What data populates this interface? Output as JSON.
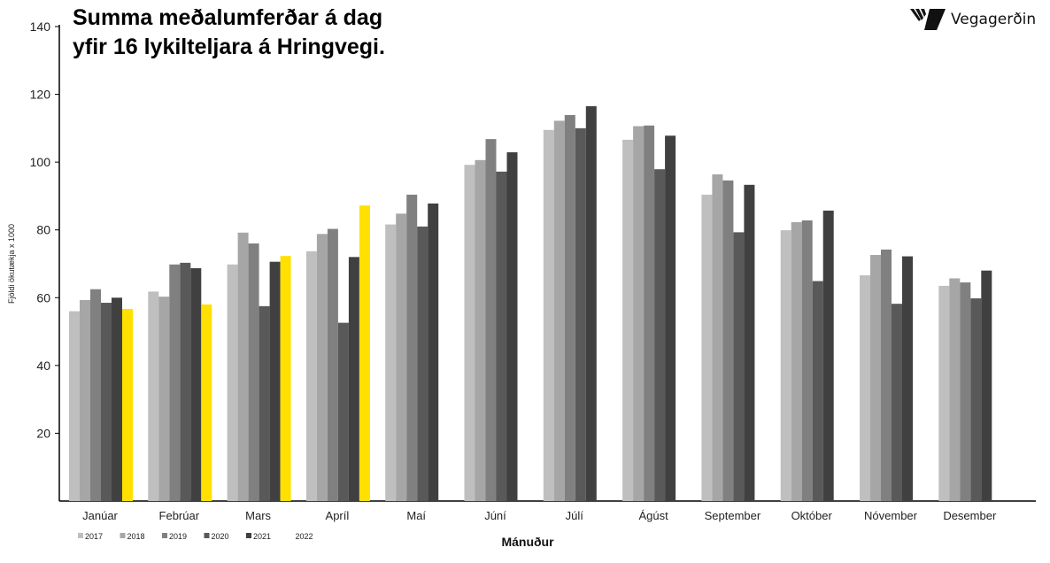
{
  "logo": {
    "text": "Vegagerðin"
  },
  "chart_data": {
    "type": "bar",
    "title": "Summa meðalumferðar á dag\nyfir 16 lykilteljara á Hringvegi.",
    "xlabel": "Mánuður",
    "ylabel": "Fjöldi ökutækja x 1000",
    "ylim": [
      0,
      140
    ],
    "yticks": [
      20,
      40,
      60,
      80,
      100,
      120,
      140
    ],
    "grid": false,
    "legend_placement": "bottom-left",
    "categories": [
      "Janúar",
      "Febrúar",
      "Mars",
      "Apríl",
      "Maí",
      "Júní",
      "Júlí",
      "Ágúst",
      "September",
      "Október",
      "Nóvember",
      "Desember"
    ],
    "series": [
      {
        "name": "2017",
        "color": "#bfbfbf",
        "values": [
          56.0,
          61.8,
          69.8,
          73.7,
          81.6,
          99.2,
          109.5,
          106.6,
          90.4,
          79.9,
          66.6,
          63.5
        ]
      },
      {
        "name": "2018",
        "color": "#a6a6a6",
        "values": [
          59.3,
          60.3,
          79.2,
          78.8,
          84.8,
          100.6,
          112.2,
          110.6,
          96.4,
          82.3,
          72.6,
          65.7
        ]
      },
      {
        "name": "2019",
        "color": "#808080",
        "values": [
          62.5,
          69.8,
          76.0,
          80.3,
          90.4,
          106.8,
          113.9,
          110.8,
          94.6,
          82.8,
          74.2,
          64.5
        ]
      },
      {
        "name": "2020",
        "color": "#595959",
        "values": [
          58.5,
          70.3,
          57.5,
          52.6,
          81.0,
          97.2,
          110.0,
          97.9,
          79.3,
          64.9,
          58.2,
          59.8
        ]
      },
      {
        "name": "2021",
        "color": "#404040",
        "values": [
          60.0,
          68.7,
          70.6,
          72.0,
          87.8,
          102.9,
          116.5,
          107.8,
          93.3,
          85.7,
          72.2,
          68.0
        ]
      },
      {
        "name": "2022",
        "color": "#ffe000",
        "legend_swatch_visible": false,
        "values": [
          56.7,
          58.0,
          72.3,
          87.2,
          null,
          null,
          null,
          null,
          null,
          null,
          null,
          null
        ]
      }
    ]
  }
}
